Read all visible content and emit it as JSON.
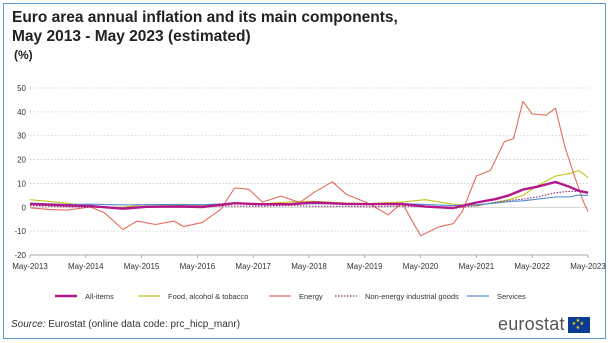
{
  "title_line1": "Euro area annual inflation and its main components,",
  "title_line2": "May 2013 - May 2023 (estimated)",
  "unit": "(%)",
  "source_label": "Source:",
  "source_text": " Eurostat (online data code: prc_hicp_manr)",
  "logo_text": "eurostat",
  "chart_data": {
    "type": "line",
    "title": "Euro area annual inflation and its main components, May 2013 - May 2023 (estimated)",
    "ylabel": "(%)",
    "ylim": [
      -20,
      50
    ],
    "yticks": [
      "50",
      "40",
      "30",
      "20",
      "10",
      "0",
      "-10",
      "-20"
    ],
    "xlim": [
      "2013-05",
      "2023-05"
    ],
    "xticks": [
      "May-2013",
      "May-2014",
      "May-2015",
      "May-2016",
      "May-2017",
      "May-2018",
      "May-2019",
      "May-2020",
      "May-2021",
      "May-2022",
      "May-2023"
    ],
    "grid": "horizontal dotted",
    "legend": "bottom",
    "series": [
      {
        "name": "All-items",
        "color": "#b5178a",
        "x": [
          "2013-05",
          "2014-01",
          "2014-06",
          "2015-01",
          "2015-06",
          "2016-01",
          "2016-06",
          "2017-01",
          "2017-06",
          "2018-01",
          "2018-06",
          "2019-01",
          "2019-06",
          "2020-01",
          "2020-06",
          "2020-12",
          "2021-05",
          "2021-09",
          "2021-12",
          "2022-03",
          "2022-06",
          "2022-10",
          "2023-01",
          "2023-03",
          "2023-05"
        ],
        "values": [
          1.4,
          0.8,
          0.5,
          -0.6,
          0.2,
          0.3,
          0.1,
          1.7,
          1.3,
          1.3,
          2.0,
          1.4,
          1.3,
          1.4,
          0.3,
          -0.3,
          2.0,
          3.4,
          5.0,
          7.4,
          8.6,
          10.6,
          8.6,
          6.9,
          6.1
        ]
      },
      {
        "name": "Food, alcohol & tobacco",
        "color": "#c5c41a",
        "x": [
          "2013-05",
          "2014-01",
          "2014-06",
          "2015-01",
          "2015-06",
          "2016-01",
          "2016-06",
          "2017-01",
          "2017-06",
          "2018-01",
          "2018-06",
          "2019-01",
          "2019-06",
          "2020-01",
          "2020-06",
          "2020-12",
          "2021-05",
          "2021-09",
          "2021-12",
          "2022-03",
          "2022-06",
          "2022-10",
          "2023-01",
          "2023-03",
          "2023-05"
        ],
        "values": [
          3.2,
          1.7,
          0.2,
          0.0,
          1.2,
          0.8,
          0.9,
          1.8,
          1.3,
          2.3,
          2.5,
          1.8,
          1.6,
          2.2,
          3.2,
          1.3,
          0.6,
          2.0,
          3.2,
          5.0,
          8.9,
          13.1,
          14.1,
          15.4,
          12.5
        ]
      },
      {
        "name": "Energy",
        "color": "#e46c5e",
        "x": [
          "2013-05",
          "2013-09",
          "2014-01",
          "2014-06",
          "2014-09",
          "2015-01",
          "2015-04",
          "2015-08",
          "2015-12",
          "2016-02",
          "2016-06",
          "2016-10",
          "2017-01",
          "2017-04",
          "2017-07",
          "2017-11",
          "2018-03",
          "2018-06",
          "2018-10",
          "2019-01",
          "2019-06",
          "2019-10",
          "2020-01",
          "2020-05",
          "2020-09",
          "2020-12",
          "2021-02",
          "2021-05",
          "2021-08",
          "2021-11",
          "2022-01",
          "2022-03",
          "2022-05",
          "2022-08",
          "2022-10",
          "2022-12",
          "2023-02",
          "2023-04",
          "2023-05"
        ],
        "values": [
          -0.2,
          -0.9,
          -1.2,
          0.1,
          -2.3,
          -9.3,
          -5.8,
          -7.2,
          -5.8,
          -8.1,
          -6.4,
          -0.9,
          8.1,
          7.6,
          2.2,
          4.7,
          2.0,
          6.1,
          10.7,
          5.5,
          1.5,
          -3.2,
          1.9,
          -11.9,
          -8.2,
          -6.9,
          -1.7,
          13.1,
          15.4,
          27.5,
          28.8,
          44.4,
          39.1,
          38.6,
          41.5,
          25.5,
          13.7,
          2.4,
          -1.8
        ]
      },
      {
        "name": "Non-energy industrial goods",
        "color": "#8a2f6e",
        "x": [
          "2013-05",
          "2014-01",
          "2014-06",
          "2015-01",
          "2015-06",
          "2016-01",
          "2016-06",
          "2017-01",
          "2017-06",
          "2018-01",
          "2018-06",
          "2019-01",
          "2019-06",
          "2020-01",
          "2020-06",
          "2020-12",
          "2021-05",
          "2021-09",
          "2021-12",
          "2022-03",
          "2022-06",
          "2022-10",
          "2023-01",
          "2023-03",
          "2023-05"
        ],
        "values": [
          0.7,
          0.2,
          0.0,
          -0.1,
          0.3,
          0.7,
          0.5,
          0.5,
          0.4,
          0.7,
          0.4,
          0.4,
          0.2,
          0.5,
          0.2,
          -0.5,
          0.7,
          2.1,
          2.9,
          3.4,
          4.3,
          6.1,
          6.7,
          6.6,
          5.8
        ]
      },
      {
        "name": "Services",
        "color": "#4f8fd3",
        "x": [
          "2013-05",
          "2014-01",
          "2014-06",
          "2015-01",
          "2015-06",
          "2016-01",
          "2016-06",
          "2017-01",
          "2017-06",
          "2018-01",
          "2018-06",
          "2019-01",
          "2019-06",
          "2020-01",
          "2020-06",
          "2020-12",
          "2021-05",
          "2021-09",
          "2021-12",
          "2022-03",
          "2022-06",
          "2022-10",
          "2023-01",
          "2023-03",
          "2023-05"
        ],
        "values": [
          1.8,
          1.2,
          1.3,
          1.0,
          1.1,
          1.2,
          1.1,
          1.6,
          1.6,
          1.2,
          1.5,
          1.3,
          1.6,
          1.5,
          1.2,
          0.7,
          1.1,
          1.7,
          2.4,
          2.7,
          3.4,
          4.3,
          4.4,
          5.1,
          5.0
        ]
      }
    ]
  }
}
